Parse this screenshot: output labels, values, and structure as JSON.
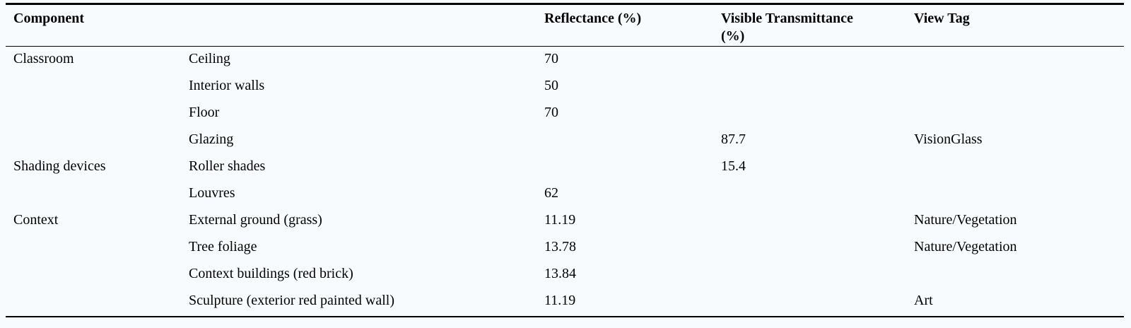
{
  "table": {
    "headers": [
      "Component",
      "",
      "Reflectance (%)",
      "Visible Transmittance (%)",
      "View Tag"
    ],
    "rows": [
      [
        "Classroom",
        "Ceiling",
        "70",
        "",
        ""
      ],
      [
        "",
        "Interior walls",
        "50",
        "",
        ""
      ],
      [
        "",
        "Floor",
        "70",
        "",
        ""
      ],
      [
        "",
        "Glazing",
        "",
        "87.7",
        "VisionGlass"
      ],
      [
        "Shading devices",
        "Roller shades",
        "",
        "15.4",
        ""
      ],
      [
        "",
        "Louvres",
        "62",
        "",
        ""
      ],
      [
        "Context",
        "External ground (grass)",
        "11.19",
        "",
        "Nature/Vegetation"
      ],
      [
        "",
        "Tree foliage",
        "13.78",
        "",
        "Nature/Vegetation"
      ],
      [
        "",
        "Context buildings (red brick)",
        "13.84",
        "",
        ""
      ],
      [
        "",
        "Sculpture (exterior red painted wall)",
        "11.19",
        "",
        "Art"
      ]
    ]
  }
}
